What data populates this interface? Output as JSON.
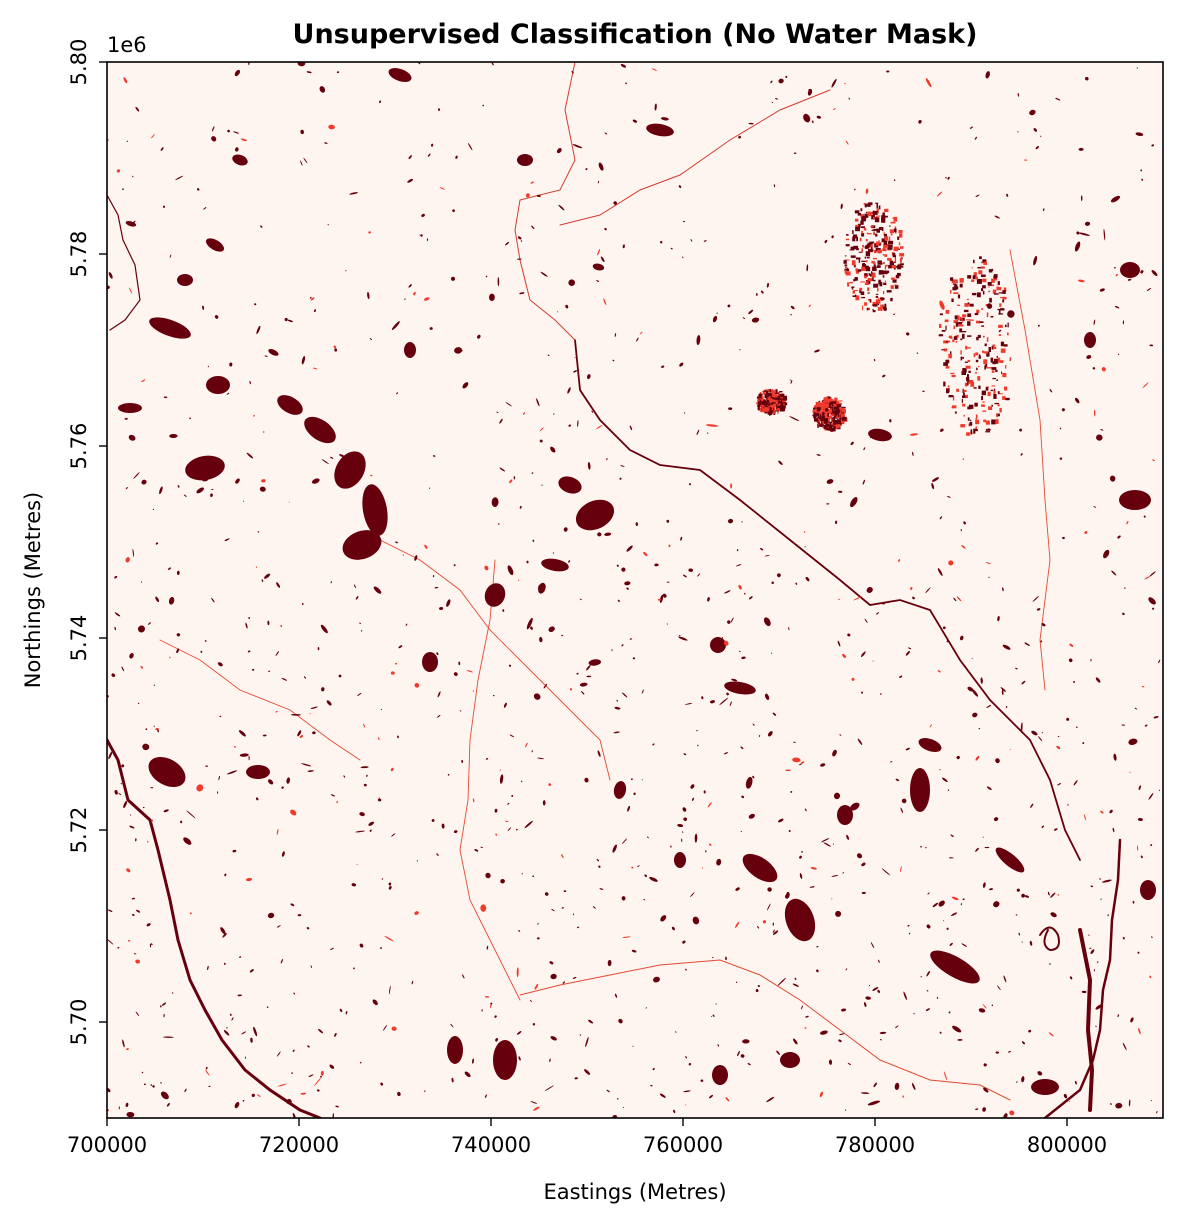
{
  "figure": {
    "title": "Unsupervised Classification (No Water Mask)",
    "xlabel": "Eastings (Metres)",
    "ylabel": "Northings (Metres)",
    "y_offset_label": "1e6"
  },
  "map": {
    "type": "raster-classification",
    "colormap": "Reds",
    "background_color": "#fff5f0",
    "water_color": "#67000d",
    "mid_color": "#ef3b2c",
    "x_range": [
      700000,
      810000
    ],
    "y_range": [
      5690000,
      5800000
    ],
    "x_ticks": [
      {
        "value": 700000,
        "label": "700000"
      },
      {
        "value": 720000,
        "label": "720000"
      },
      {
        "value": 740000,
        "label": "740000"
      },
      {
        "value": 760000,
        "label": "760000"
      },
      {
        "value": 780000,
        "label": "780000"
      },
      {
        "value": 800000,
        "label": "800000"
      }
    ],
    "y_ticks": [
      {
        "value": 5700000,
        "label": "5.70"
      },
      {
        "value": 5720000,
        "label": "5.72"
      },
      {
        "value": 5740000,
        "label": "5.74"
      },
      {
        "value": 5760000,
        "label": "5.76"
      },
      {
        "value": 5780000,
        "label": "5.78"
      },
      {
        "value": 5800000,
        "label": "5.80"
      }
    ]
  }
}
